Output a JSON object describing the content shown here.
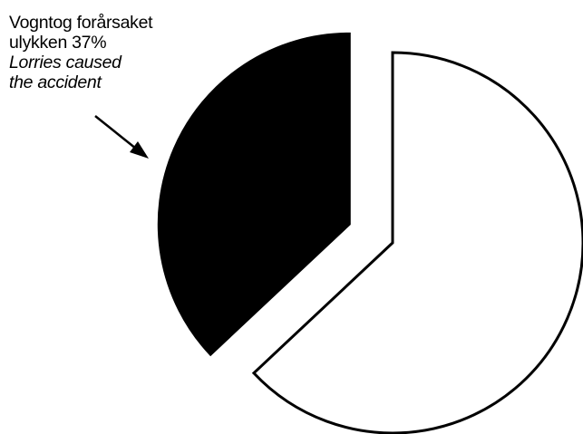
{
  "chart_data": {
    "type": "pie",
    "title": "",
    "exploded": true,
    "start_angle": "12 o'clock",
    "slices": [
      {
        "label": "Vogntog forårsaket ulykken / Lorries caused the accident",
        "value": 37,
        "unit": "%",
        "color": "#000000"
      },
      {
        "label": "",
        "value": 63,
        "unit": "%",
        "color": "#ffffff"
      }
    ],
    "annotation": {
      "line_1": "Vogntog forårsaket",
      "line_2": "ulykken 37%",
      "line_3": "Lorries caused",
      "line_4": "the accident"
    },
    "slice_outline_color": "#000000",
    "background_color": "#ffffff"
  }
}
